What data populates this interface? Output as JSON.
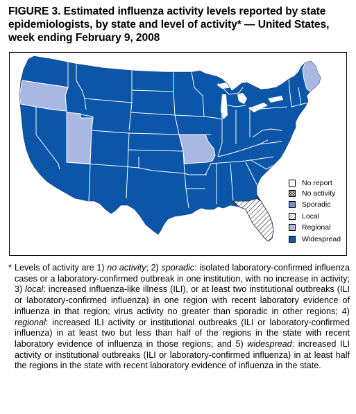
{
  "figure": {
    "label": "FIGURE 3.",
    "title": "Estimated influenza activity levels reported by state epidemiologists, by state and level of activity* — United States, week ending February 9, 2008"
  },
  "colors": {
    "widespread": "#0b56a8",
    "regional": "#a9b8e0",
    "sporadic": "#6a8fd0",
    "local_hatch": "#ffffff",
    "no_report": "#ffffff",
    "outline": "#ffffff",
    "border": "#000000"
  },
  "legend": [
    {
      "key": "no_report",
      "label": "No report"
    },
    {
      "key": "no_activity",
      "label": "No activity"
    },
    {
      "key": "sporadic",
      "label": "Sporadic"
    },
    {
      "key": "local",
      "label": "Local"
    },
    {
      "key": "regional",
      "label": "Regional"
    },
    {
      "key": "widespread",
      "label": "Widespread"
    }
  ],
  "map": {
    "regional_states": [
      "Oregon",
      "Utah",
      "Missouri",
      "Maine"
    ],
    "local_states": [
      "Florida"
    ],
    "widespread_states": "All other states"
  },
  "footnote": {
    "marker": "*",
    "segments": [
      {
        "t": "Levels of activity are 1) "
      },
      {
        "t": "no activity",
        "i": true
      },
      {
        "t": "; 2) "
      },
      {
        "t": "sporadic",
        "i": true
      },
      {
        "t": ": isolated laboratory-confirmed influenza cases or a laboratory-confirmed outbreak in one institution, with no increase in activity; 3) "
      },
      {
        "t": "local",
        "i": true
      },
      {
        "t": ": increased influenza-like illness (ILI), or at least two institutional outbreaks (ILI or laboratory-confirmed influenza) in one region with recent laboratory evidence of influenza in that region; virus activity no greater than sporadic in other regions; 4) "
      },
      {
        "t": "regional",
        "i": true
      },
      {
        "t": ": increased ILI activity or institutional outbreaks (ILI or laboratory-confirmed influenza) in at least two but less than half of the regions in the state with recent laboratory evidence of influenza in those regions; and 5) "
      },
      {
        "t": "widespread",
        "i": true
      },
      {
        "t": ": increased ILI activity or institutional outbreaks (ILI or laboratory-confirmed influenza) in at least half the regions in the state with recent laboratory evidence of influenza in the state."
      }
    ]
  }
}
